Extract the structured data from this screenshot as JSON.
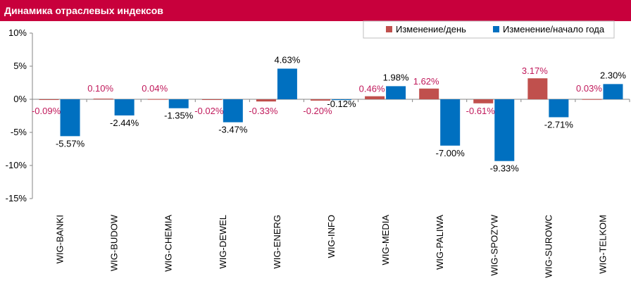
{
  "title": "Динамика отраслевых индексов",
  "colors": {
    "title_bg": "#c8003c",
    "day": "#c0504d",
    "ytd": "#0070c0",
    "day_label": "#c0185a"
  },
  "chart_data": {
    "type": "bar",
    "categories": [
      "WIG-BANKI",
      "WIG-BUDOW",
      "WIG-CHEMIA",
      "WIG-DEWEL",
      "WIG-ENERG",
      "WIG-INFO",
      "WIG-MEDIA",
      "WIG-PALIWA",
      "WIG-SPOZYW",
      "WIG-SUROWC",
      "WIG-TELKOM"
    ],
    "series": [
      {
        "name": "Изменение/день",
        "values": [
          -0.09,
          0.1,
          0.04,
          -0.02,
          -0.33,
          -0.2,
          0.46,
          1.62,
          -0.61,
          3.17,
          0.03
        ],
        "labels": [
          "-0.09%",
          "0.10%",
          "0.04%",
          "-0.02%",
          "-0.33%",
          "-0.20%",
          "0.46%",
          "1.62%",
          "-0.61%",
          "3.17%",
          "0.03%"
        ]
      },
      {
        "name": "Изменение/начало года",
        "values": [
          -5.57,
          -2.44,
          -1.35,
          -3.47,
          4.63,
          -0.12,
          1.98,
          -7.0,
          -9.33,
          -2.71,
          2.3
        ],
        "labels": [
          "-5.57%",
          "-2.44%",
          "-1.35%",
          "-3.47%",
          "4.63%",
          "-0.12%",
          "1.98%",
          "-7.00%",
          "-9.33%",
          "-2.71%",
          "2.30%"
        ]
      }
    ],
    "yticks": [
      "10%",
      "5%",
      "0%",
      "-5%",
      "-10%",
      "-15%"
    ],
    "ytick_values": [
      10,
      5,
      0,
      -5,
      -10,
      -15
    ],
    "ylim": [
      -15,
      10
    ],
    "legend": "top-right",
    "grid": false
  }
}
